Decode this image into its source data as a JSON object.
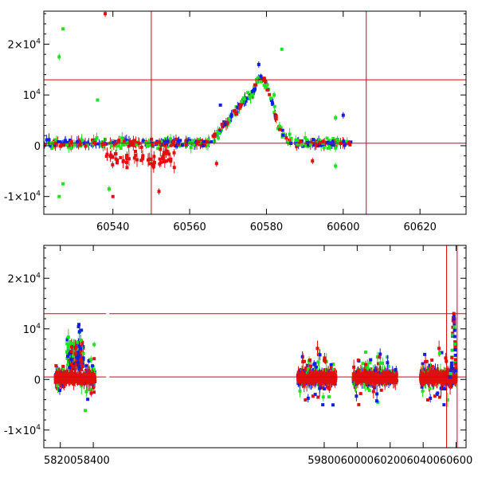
{
  "colors": {
    "red": "#e01010",
    "green": "#22e022",
    "blue": "#1020e0",
    "line": "#e00000"
  },
  "chart_data": [
    {
      "type": "scatter",
      "panel": "top",
      "xlim": [
        60522,
        60632
      ],
      "ylim": [
        -13500,
        26500
      ],
      "xticks": [
        60540,
        60560,
        60580,
        60600,
        60620
      ],
      "xticklabels": [
        "60540",
        "60560",
        "60580",
        "60600",
        "60620"
      ],
      "yticks": [
        -10000,
        0,
        10000,
        20000
      ],
      "yticklabels": [
        {
          "base": "-1×10",
          "exp": "4"
        },
        {
          "base": "0",
          "exp": ""
        },
        {
          "base": "10",
          "exp": "4"
        },
        {
          "base": "2×10",
          "exp": "4"
        }
      ],
      "hlines": [
        13000,
        500
      ],
      "vlines": [
        60550,
        60606
      ],
      "grid": false,
      "series": [
        {
          "color": "red",
          "marker": "square"
        },
        {
          "color": "green",
          "marker": "square"
        },
        {
          "color": "blue",
          "marker": "square"
        }
      ],
      "outliers": [
        {
          "x": 60527,
          "y": 23000,
          "c": "green"
        },
        {
          "x": 60526,
          "y": 17500,
          "c": "green"
        },
        {
          "x": 60536,
          "y": 9000,
          "c": "green"
        },
        {
          "x": 60584,
          "y": 19000,
          "c": "green"
        },
        {
          "x": 60578,
          "y": 16000,
          "c": "blue"
        },
        {
          "x": 60598,
          "y": 5500,
          "c": "green"
        },
        {
          "x": 60600,
          "y": 6000,
          "c": "blue"
        },
        {
          "x": 60592,
          "y": -3000,
          "c": "red"
        },
        {
          "x": 60598,
          "y": -4000,
          "c": "green"
        },
        {
          "x": 60539,
          "y": -8500,
          "c": "green"
        },
        {
          "x": 60540,
          "y": -10000,
          "c": "red"
        },
        {
          "x": 60526,
          "y": -10000,
          "c": "green"
        },
        {
          "x": 60527,
          "y": -7500,
          "c": "green"
        },
        {
          "x": 60538,
          "y": 26000,
          "c": "red"
        },
        {
          "x": 60552,
          "y": -9000,
          "c": "red"
        },
        {
          "x": 60554,
          "y": -3000,
          "c": "red"
        },
        {
          "x": 60567,
          "y": -3500,
          "c": "red"
        },
        {
          "x": 60568,
          "y": 8000,
          "c": "blue"
        },
        {
          "x": 60582,
          "y": 10000,
          "c": "green"
        }
      ]
    },
    {
      "type": "scatter",
      "panel": "bottom",
      "xlim": [
        58100,
        60660
      ],
      "ylim": [
        -13500,
        26500
      ],
      "xbreak_gap": [
        58420,
        59600
      ],
      "xticks": [
        58200,
        58400,
        59800,
        60000,
        60200,
        60400,
        60600
      ],
      "xticklabels": [
        "58200",
        "58400",
        "59800",
        "60000",
        "60200",
        "60400",
        "60600"
      ],
      "yticks": [
        -10000,
        0,
        10000,
        20000
      ],
      "yticklabels": [
        {
          "base": "-1×10",
          "exp": "4"
        },
        {
          "base": "0",
          "exp": ""
        },
        {
          "base": "10",
          "exp": "4"
        },
        {
          "base": "2×10",
          "exp": "4"
        }
      ],
      "hlines": [
        13000,
        500
      ],
      "vlines": [
        60542,
        60606
      ],
      "grid": false,
      "clusters": [
        {
          "x": [
            58170,
            58410
          ]
        },
        {
          "x": [
            59640,
            59870
          ]
        },
        {
          "x": [
            59975,
            60240
          ]
        },
        {
          "x": [
            60385,
            60600
          ]
        }
      ],
      "series": [
        {
          "color": "red",
          "marker": "square"
        },
        {
          "color": "green",
          "marker": "square"
        },
        {
          "color": "blue",
          "marker": "square"
        }
      ]
    }
  ]
}
